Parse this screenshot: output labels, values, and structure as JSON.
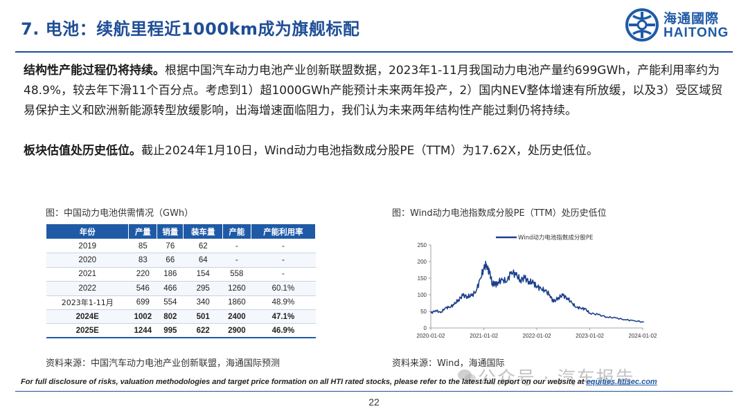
{
  "header": {
    "title": "7. 电池：续航里程近1000km成为旗舰标配",
    "logo_cn": "海通國際",
    "logo_en": "HAITONG"
  },
  "body": {
    "para1_lead": "结构性产能过程仍将持续。",
    "para1_text": "根据中国汽车动力电池产业创新联盟数据，2023年1-11月我国动力电池产量约699GWh，产能利用率约为48.9%，较去年下滑11个百分点。考虑到1）超1000GWh产能预计未来两年投产，2）国内NEV整体增速有所放缓，以及3）受区域贸易保护主义和欧洲新能源转型放缓影响，出海增速面临阻力，我们认为未来两年结构性产能过剩仍将持续。",
    "para2_lead": "板块估值处历史低位。",
    "para2_text": "截止2024年1月10日，Wind动力电池指数成分股PE（TTM）为17.62X，处历史低位。"
  },
  "left_figure": {
    "caption": "图：中国动力电池供需情况（GWh）",
    "headers": [
      "年份",
      "产量",
      "销量",
      "装车量",
      "产能",
      "产能利用率"
    ],
    "rows": [
      [
        "2019",
        "85",
        "76",
        "62",
        "-",
        "-"
      ],
      [
        "2020",
        "83",
        "66",
        "64",
        "-",
        "-"
      ],
      [
        "2021",
        "220",
        "186",
        "154",
        "558",
        "-"
      ],
      [
        "2022",
        "546",
        "466",
        "295",
        "1260",
        "60.1%"
      ],
      [
        "2023年1-11月",
        "699",
        "554",
        "340",
        "1860",
        "48.9%"
      ],
      [
        "2024E",
        "1002",
        "802",
        "501",
        "2400",
        "47.1%"
      ],
      [
        "2025E",
        "1244",
        "995",
        "622",
        "2900",
        "46.9%"
      ]
    ],
    "source": "资料来源：中国汽车动力电池产业创新联盟，海通国际预测"
  },
  "right_figure": {
    "caption": "图：Wind动力电池指数成分股PE（TTM）处历史低位",
    "source": "资料来源：Wind，海通国际"
  },
  "chart_data": {
    "type": "line",
    "title": "",
    "xlabel": "",
    "ylabel": "",
    "ylim": [
      0,
      250
    ],
    "yticks": [
      "0",
      "50",
      "100",
      "150",
      "200",
      "250"
    ],
    "xticks": [
      "2020-01-02",
      "2021-01-02",
      "2022-01-02",
      "2023-01-02",
      "2024-01-02"
    ],
    "legend_position": "top-center",
    "line_color": "#1c3f8c",
    "series": [
      {
        "name": "Wind动力电池指数成分股PE",
        "x": [
          "2020-01-02",
          "2020-02-05",
          "2020-03-10",
          "2020-04-10",
          "2020-05-10",
          "2020-06-10",
          "2020-07-10",
          "2020-08-10",
          "2020-09-10",
          "2020-10-10",
          "2020-11-10",
          "2020-12-10",
          "2021-01-02",
          "2021-01-20",
          "2021-02-10",
          "2021-03-01",
          "2021-03-20",
          "2021-04-10",
          "2021-05-10",
          "2021-06-10",
          "2021-07-10",
          "2021-08-10",
          "2021-09-10",
          "2021-10-10",
          "2021-11-10",
          "2021-12-10",
          "2022-01-02",
          "2022-02-01",
          "2022-03-01",
          "2022-04-01",
          "2022-04-27",
          "2022-06-01",
          "2022-07-01",
          "2022-08-01",
          "2022-09-01",
          "2022-10-01",
          "2022-11-01",
          "2022-12-01",
          "2023-01-02",
          "2023-03-01",
          "2023-05-01",
          "2023-07-01",
          "2023-09-01",
          "2023-11-01",
          "2024-01-10"
        ],
        "values": [
          45,
          53,
          46,
          60,
          63,
          70,
          85,
          98,
          95,
          97,
          112,
          150,
          180,
          192,
          165,
          135,
          130,
          138,
          145,
          140,
          170,
          160,
          145,
          150,
          140,
          135,
          125,
          118,
          112,
          100,
          78,
          92,
          98,
          90,
          75,
          62,
          60,
          57,
          45,
          40,
          33,
          30,
          25,
          22,
          17.62
        ]
      }
    ]
  },
  "footer": {
    "disclosure": "For full disclosure of risks, valuation methodologies and target price formation on all HTI rated stocks, please refer to the latest full report on our website at ",
    "link_text": "equities.htisec.com",
    "page_number": "22",
    "watermark": "公众号 · 汽车报告"
  }
}
